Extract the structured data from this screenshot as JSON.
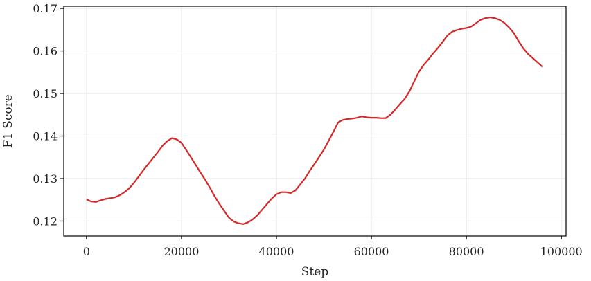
{
  "chart_data": {
    "type": "line",
    "xlabel": "Step",
    "ylabel": "F1 Score",
    "xlim": [
      -4800,
      101000
    ],
    "ylim": [
      0.1165,
      0.1705
    ],
    "xticks": [
      0,
      20000,
      40000,
      60000,
      80000,
      100000
    ],
    "yticks": [
      0.12,
      0.13,
      0.14,
      0.15,
      0.16,
      0.17
    ],
    "grid": true,
    "colors": {
      "line": "#d62728"
    },
    "series": [
      {
        "x": [
          0,
          1000,
          2000,
          3000,
          4000,
          5000,
          6000,
          7000,
          8000,
          9000,
          10000,
          11000,
          12000,
          13000,
          14000,
          15000,
          16000,
          17000,
          18000,
          19000,
          20000,
          21000,
          22000,
          23000,
          24000,
          25000,
          26000,
          27000,
          28000,
          29000,
          30000,
          31000,
          32000,
          33000,
          34000,
          35000,
          36000,
          37000,
          38000,
          39000,
          40000,
          41000,
          42000,
          43000,
          44000,
          45000,
          46000,
          47000,
          48000,
          49000,
          50000,
          51000,
          52000,
          53000,
          54000,
          55000,
          56000,
          57000,
          58000,
          59000,
          60000,
          61000,
          62000,
          63000,
          64000,
          65000,
          66000,
          67000,
          68000,
          69000,
          70000,
          71000,
          72000,
          73000,
          74000,
          75000,
          76000,
          77000,
          78000,
          79000,
          80000,
          81000,
          82000,
          83000,
          84000,
          85000,
          86000,
          87000,
          88000,
          89000,
          90000,
          91000,
          92000,
          93000,
          94000,
          95000,
          96000
        ],
        "values": [
          0.1251,
          0.1246,
          0.1245,
          0.1249,
          0.1252,
          0.1254,
          0.1256,
          0.1261,
          0.1268,
          0.1277,
          0.129,
          0.1305,
          0.132,
          0.1334,
          0.1348,
          0.1362,
          0.1377,
          0.1388,
          0.1395,
          0.1392,
          0.1384,
          0.1367,
          0.135,
          0.1332,
          0.1314,
          0.1297,
          0.1278,
          0.1258,
          0.124,
          0.1224,
          0.1208,
          0.1199,
          0.1195,
          0.1193,
          0.1197,
          0.1204,
          0.1214,
          0.1227,
          0.124,
          0.1253,
          0.1263,
          0.1268,
          0.1268,
          0.1266,
          0.1272,
          0.1286,
          0.13,
          0.1318,
          0.1334,
          0.1351,
          0.1368,
          0.1389,
          0.141,
          0.1432,
          0.1438,
          0.144,
          0.1441,
          0.1443,
          0.1446,
          0.1444,
          0.1443,
          0.1443,
          0.1442,
          0.1442,
          0.145,
          0.1462,
          0.1475,
          0.1487,
          0.1505,
          0.1528,
          0.1551,
          0.1567,
          0.158,
          0.1594,
          0.1607,
          0.1621,
          0.1636,
          0.1645,
          0.1649,
          0.1652,
          0.1654,
          0.1657,
          0.1665,
          0.1673,
          0.1677,
          0.1679,
          0.1677,
          0.1673,
          0.1666,
          0.1655,
          0.1642,
          0.1623,
          0.1606,
          0.1593,
          0.1583,
          0.1573,
          0.1563
        ]
      }
    ]
  }
}
